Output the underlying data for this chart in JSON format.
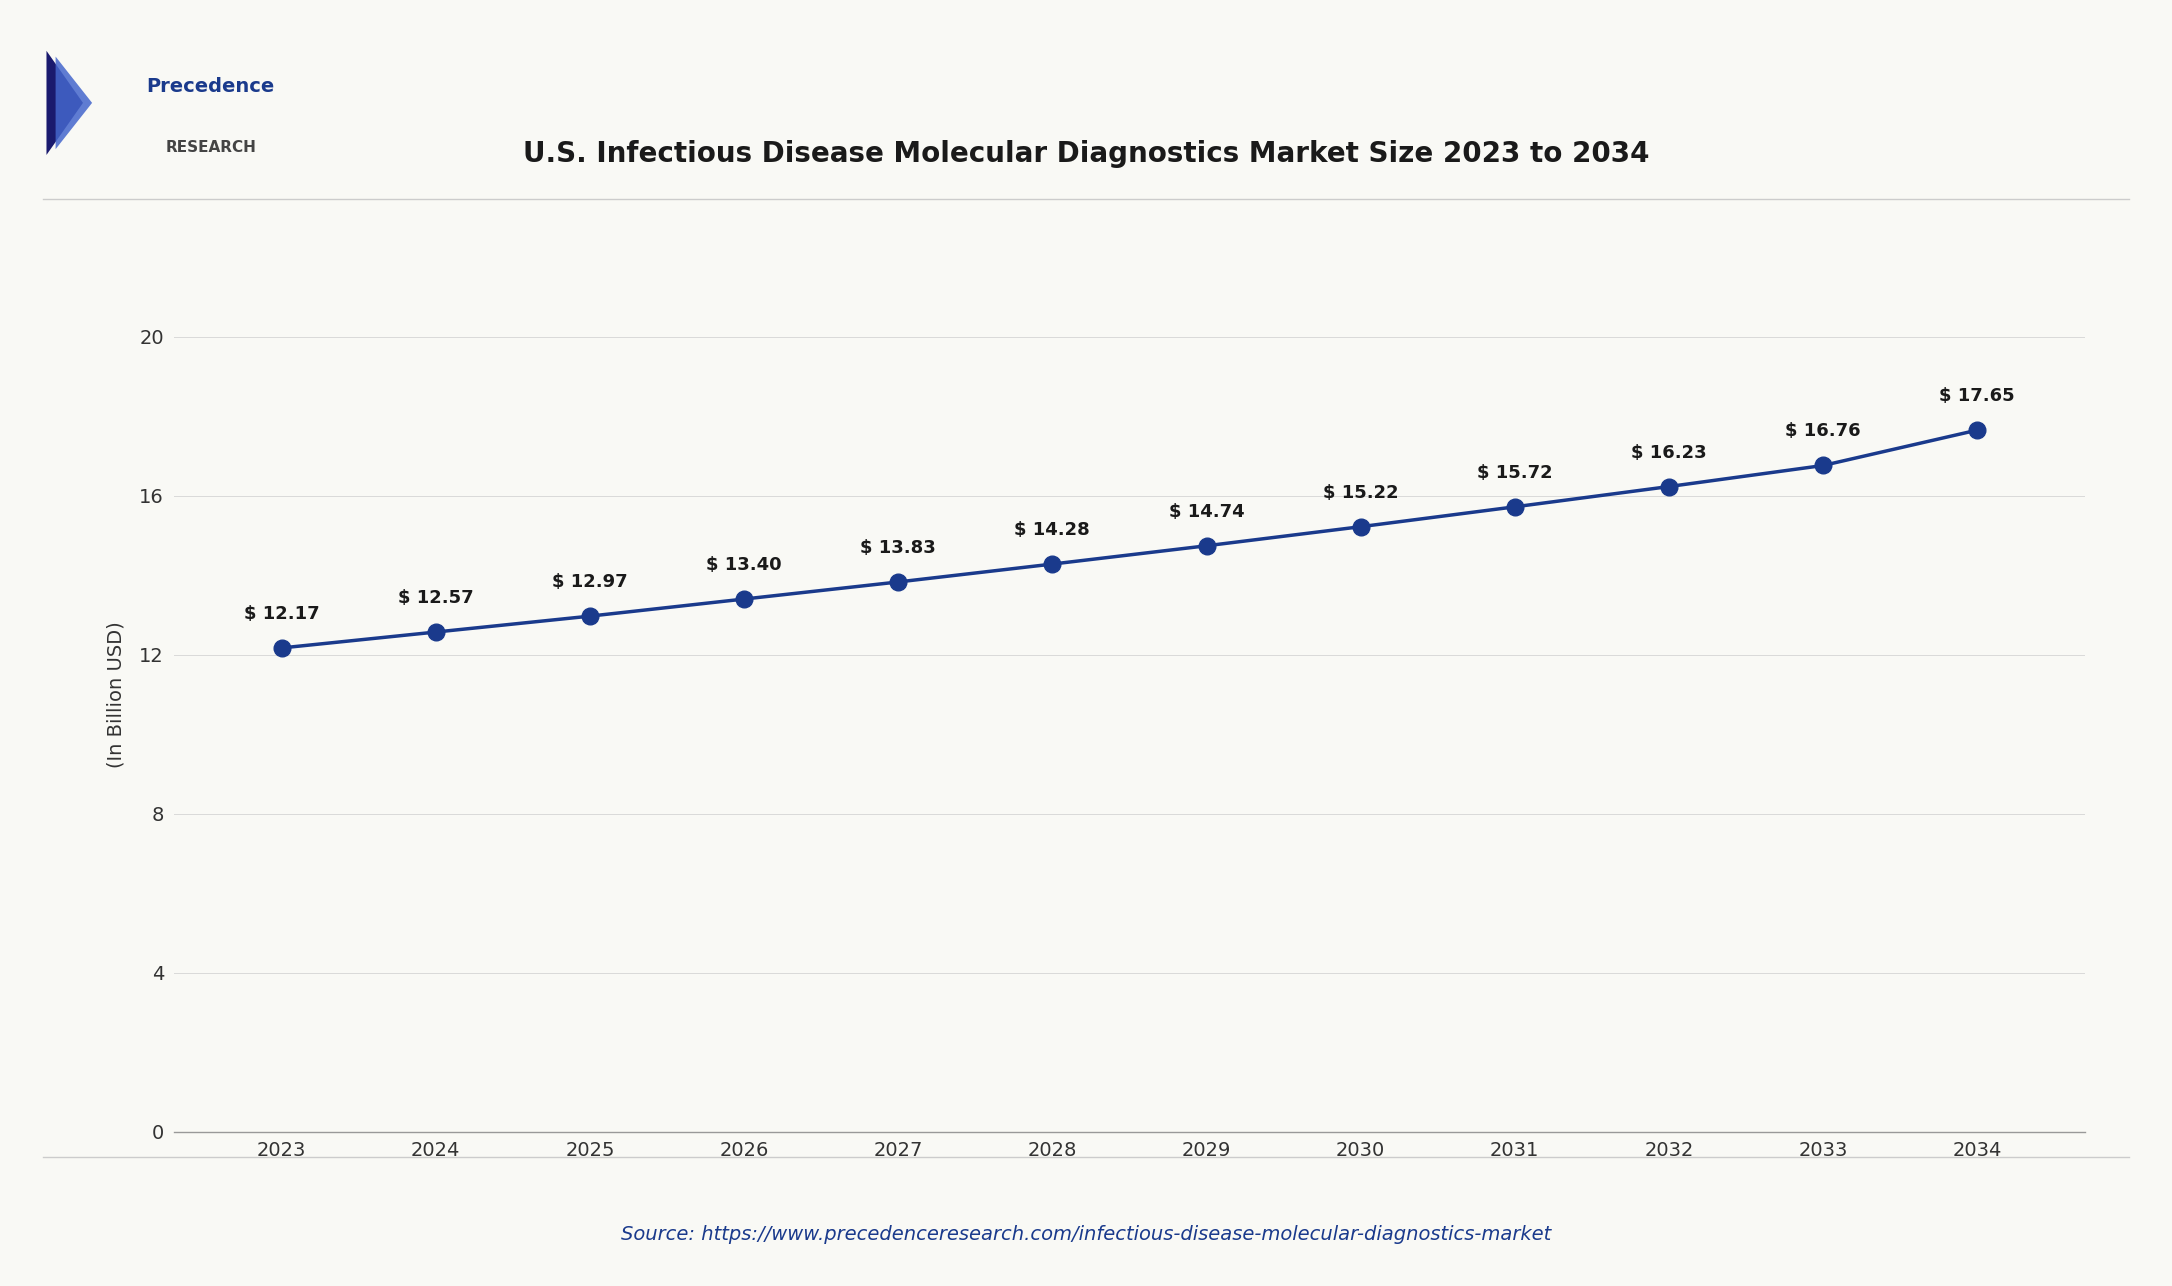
{
  "title": "U.S. Infectious Disease Molecular Diagnostics Market Size 2023 to 2034",
  "years": [
    2023,
    2024,
    2025,
    2026,
    2027,
    2028,
    2029,
    2030,
    2031,
    2032,
    2033,
    2034
  ],
  "values": [
    12.17,
    12.57,
    12.97,
    13.4,
    13.83,
    14.28,
    14.74,
    15.22,
    15.72,
    16.23,
    16.76,
    17.65
  ],
  "labels": [
    "$ 12.17",
    "$ 12.57",
    "$ 12.97",
    "$ 13.40",
    "$ 13.83",
    "$ 14.28",
    "$ 14.74",
    "$ 15.22",
    "$ 15.72",
    "$ 16.23",
    "$ 16.76",
    "$ 17.65"
  ],
  "line_color": "#1a3a8c",
  "marker_color": "#1a3a8c",
  "ylabel": "(In Billion USD)",
  "ylim": [
    0,
    22
  ],
  "yticks": [
    0,
    4,
    8,
    12,
    16,
    20
  ],
  "background_color": "#f9f9f5",
  "plot_bg_color": "#f9f9f5",
  "title_color": "#1a1a1a",
  "source_text": "Source: https://www.precedenceresearch.com/infectious-disease-molecular-diagnostics-market",
  "source_color": "#1a3a8c",
  "grid_color": "#cccccc",
  "title_fontsize": 20,
  "label_fontsize": 13,
  "axis_fontsize": 14,
  "source_fontsize": 14,
  "ylabel_fontsize": 14,
  "marker_size": 12,
  "line_width": 2.5
}
